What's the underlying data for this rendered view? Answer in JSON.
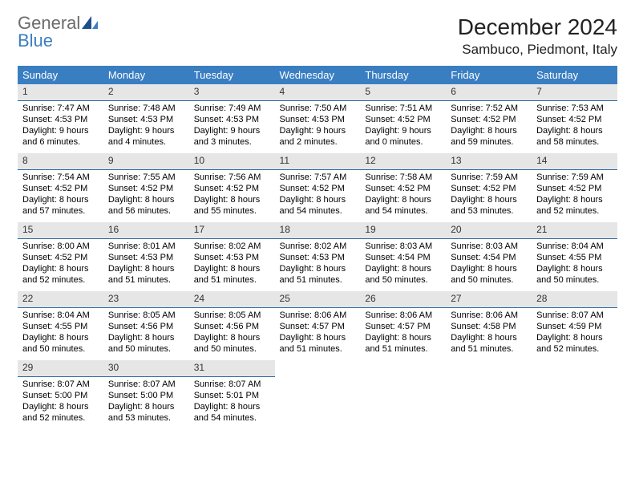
{
  "brand": {
    "word1": "General",
    "word2": "Blue"
  },
  "title": "December 2024",
  "location": "Sambuco, Piedmont, Italy",
  "colors": {
    "header_bg": "#3a7ec2",
    "header_text": "#ffffff",
    "daynum_bg": "#e6e6e6",
    "daynum_border": "#2f6aa5",
    "logo_gray": "#6b6b6b",
    "logo_blue": "#3a7ec2"
  },
  "weekdays": [
    "Sunday",
    "Monday",
    "Tuesday",
    "Wednesday",
    "Thursday",
    "Friday",
    "Saturday"
  ],
  "weeks": [
    [
      {
        "n": "1",
        "sr": "Sunrise: 7:47 AM",
        "ss": "Sunset: 4:53 PM",
        "dl": "Daylight: 9 hours and 6 minutes."
      },
      {
        "n": "2",
        "sr": "Sunrise: 7:48 AM",
        "ss": "Sunset: 4:53 PM",
        "dl": "Daylight: 9 hours and 4 minutes."
      },
      {
        "n": "3",
        "sr": "Sunrise: 7:49 AM",
        "ss": "Sunset: 4:53 PM",
        "dl": "Daylight: 9 hours and 3 minutes."
      },
      {
        "n": "4",
        "sr": "Sunrise: 7:50 AM",
        "ss": "Sunset: 4:53 PM",
        "dl": "Daylight: 9 hours and 2 minutes."
      },
      {
        "n": "5",
        "sr": "Sunrise: 7:51 AM",
        "ss": "Sunset: 4:52 PM",
        "dl": "Daylight: 9 hours and 0 minutes."
      },
      {
        "n": "6",
        "sr": "Sunrise: 7:52 AM",
        "ss": "Sunset: 4:52 PM",
        "dl": "Daylight: 8 hours and 59 minutes."
      },
      {
        "n": "7",
        "sr": "Sunrise: 7:53 AM",
        "ss": "Sunset: 4:52 PM",
        "dl": "Daylight: 8 hours and 58 minutes."
      }
    ],
    [
      {
        "n": "8",
        "sr": "Sunrise: 7:54 AM",
        "ss": "Sunset: 4:52 PM",
        "dl": "Daylight: 8 hours and 57 minutes."
      },
      {
        "n": "9",
        "sr": "Sunrise: 7:55 AM",
        "ss": "Sunset: 4:52 PM",
        "dl": "Daylight: 8 hours and 56 minutes."
      },
      {
        "n": "10",
        "sr": "Sunrise: 7:56 AM",
        "ss": "Sunset: 4:52 PM",
        "dl": "Daylight: 8 hours and 55 minutes."
      },
      {
        "n": "11",
        "sr": "Sunrise: 7:57 AM",
        "ss": "Sunset: 4:52 PM",
        "dl": "Daylight: 8 hours and 54 minutes."
      },
      {
        "n": "12",
        "sr": "Sunrise: 7:58 AM",
        "ss": "Sunset: 4:52 PM",
        "dl": "Daylight: 8 hours and 54 minutes."
      },
      {
        "n": "13",
        "sr": "Sunrise: 7:59 AM",
        "ss": "Sunset: 4:52 PM",
        "dl": "Daylight: 8 hours and 53 minutes."
      },
      {
        "n": "14",
        "sr": "Sunrise: 7:59 AM",
        "ss": "Sunset: 4:52 PM",
        "dl": "Daylight: 8 hours and 52 minutes."
      }
    ],
    [
      {
        "n": "15",
        "sr": "Sunrise: 8:00 AM",
        "ss": "Sunset: 4:52 PM",
        "dl": "Daylight: 8 hours and 52 minutes."
      },
      {
        "n": "16",
        "sr": "Sunrise: 8:01 AM",
        "ss": "Sunset: 4:53 PM",
        "dl": "Daylight: 8 hours and 51 minutes."
      },
      {
        "n": "17",
        "sr": "Sunrise: 8:02 AM",
        "ss": "Sunset: 4:53 PM",
        "dl": "Daylight: 8 hours and 51 minutes."
      },
      {
        "n": "18",
        "sr": "Sunrise: 8:02 AM",
        "ss": "Sunset: 4:53 PM",
        "dl": "Daylight: 8 hours and 51 minutes."
      },
      {
        "n": "19",
        "sr": "Sunrise: 8:03 AM",
        "ss": "Sunset: 4:54 PM",
        "dl": "Daylight: 8 hours and 50 minutes."
      },
      {
        "n": "20",
        "sr": "Sunrise: 8:03 AM",
        "ss": "Sunset: 4:54 PM",
        "dl": "Daylight: 8 hours and 50 minutes."
      },
      {
        "n": "21",
        "sr": "Sunrise: 8:04 AM",
        "ss": "Sunset: 4:55 PM",
        "dl": "Daylight: 8 hours and 50 minutes."
      }
    ],
    [
      {
        "n": "22",
        "sr": "Sunrise: 8:04 AM",
        "ss": "Sunset: 4:55 PM",
        "dl": "Daylight: 8 hours and 50 minutes."
      },
      {
        "n": "23",
        "sr": "Sunrise: 8:05 AM",
        "ss": "Sunset: 4:56 PM",
        "dl": "Daylight: 8 hours and 50 minutes."
      },
      {
        "n": "24",
        "sr": "Sunrise: 8:05 AM",
        "ss": "Sunset: 4:56 PM",
        "dl": "Daylight: 8 hours and 50 minutes."
      },
      {
        "n": "25",
        "sr": "Sunrise: 8:06 AM",
        "ss": "Sunset: 4:57 PM",
        "dl": "Daylight: 8 hours and 51 minutes."
      },
      {
        "n": "26",
        "sr": "Sunrise: 8:06 AM",
        "ss": "Sunset: 4:57 PM",
        "dl": "Daylight: 8 hours and 51 minutes."
      },
      {
        "n": "27",
        "sr": "Sunrise: 8:06 AM",
        "ss": "Sunset: 4:58 PM",
        "dl": "Daylight: 8 hours and 51 minutes."
      },
      {
        "n": "28",
        "sr": "Sunrise: 8:07 AM",
        "ss": "Sunset: 4:59 PM",
        "dl": "Daylight: 8 hours and 52 minutes."
      }
    ],
    [
      {
        "n": "29",
        "sr": "Sunrise: 8:07 AM",
        "ss": "Sunset: 5:00 PM",
        "dl": "Daylight: 8 hours and 52 minutes."
      },
      {
        "n": "30",
        "sr": "Sunrise: 8:07 AM",
        "ss": "Sunset: 5:00 PM",
        "dl": "Daylight: 8 hours and 53 minutes."
      },
      {
        "n": "31",
        "sr": "Sunrise: 8:07 AM",
        "ss": "Sunset: 5:01 PM",
        "dl": "Daylight: 8 hours and 54 minutes."
      },
      null,
      null,
      null,
      null
    ]
  ]
}
